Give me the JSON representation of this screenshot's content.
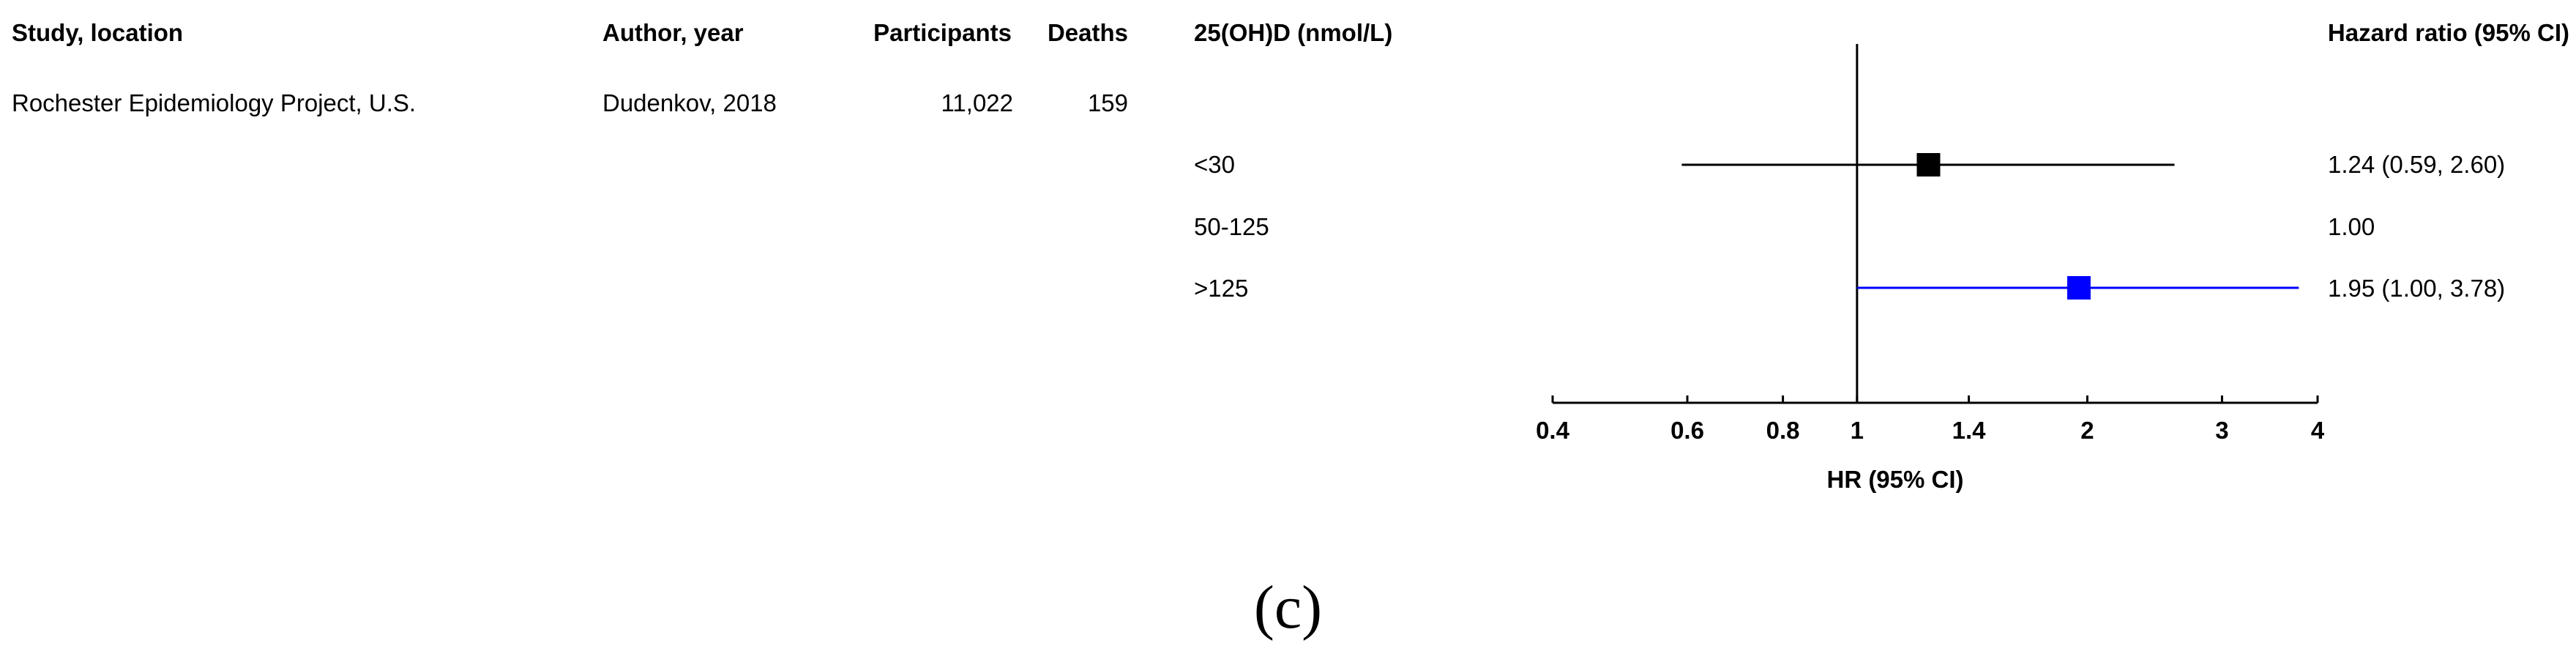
{
  "table": {
    "headers": {
      "study": "Study, location",
      "author": "Author, year",
      "participants": "Participants",
      "deaths": "Deaths",
      "level": "25(OH)D (nmol/L)",
      "hr": "Hazard ratio (95% CI)"
    },
    "study_row": {
      "study": "Rochester Epidemiology Project, U.S.",
      "author": "Dudenkov, 2018",
      "participants": "11,022",
      "deaths": "159"
    }
  },
  "caption": "(c)",
  "chart_data": {
    "type": "forest",
    "xscale": "log",
    "xlim": [
      0.4,
      4
    ],
    "xticks": [
      0.4,
      0.6,
      0.8,
      1,
      1.4,
      2,
      3,
      4
    ],
    "xtick_labels": [
      "0.4",
      "0.6",
      "0.8",
      "1",
      "1.4",
      "2",
      "3",
      "4"
    ],
    "xlabel": "HR (95% CI)",
    "reference_line": 1,
    "rows": [
      {
        "label": "<30",
        "hr": 1.24,
        "lower": 0.59,
        "upper": 2.6,
        "hr_text": "1.24 (0.59, 2.60)",
        "color": "#000000"
      },
      {
        "label": "50-125",
        "hr": 1.0,
        "lower": null,
        "upper": null,
        "hr_text": "1.00",
        "color": "#000000"
      },
      {
        "label": ">125",
        "hr": 1.95,
        "lower": 1.0,
        "upper": 3.78,
        "hr_text": "1.95 (1.00, 3.78)",
        "color": "#0000ff"
      }
    ]
  }
}
